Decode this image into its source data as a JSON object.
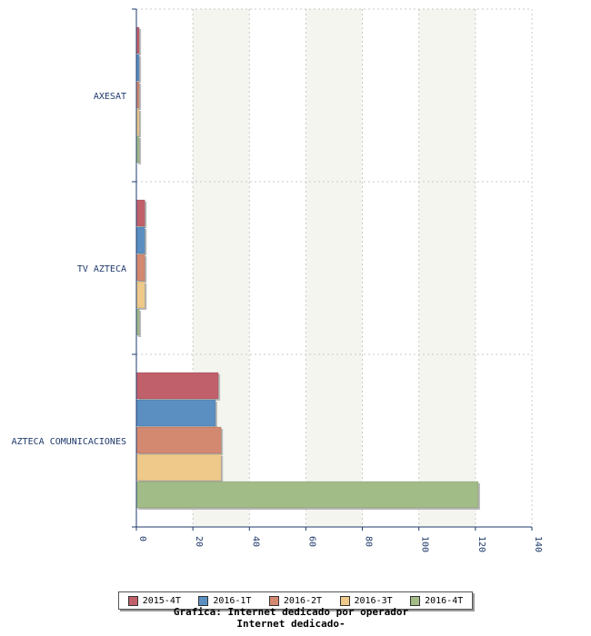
{
  "chart_data": {
    "type": "bar",
    "orientation": "horizontal",
    "categories": [
      "AXESAT",
      "TV AZTECA",
      "AZTECA COMUNICACIONES"
    ],
    "series": [
      {
        "name": "2015-4T",
        "color": "#c0606b",
        "values": [
          1,
          3,
          29
        ]
      },
      {
        "name": "2016-1T",
        "color": "#5b8fc2",
        "values": [
          1,
          3,
          28
        ]
      },
      {
        "name": "2016-2T",
        "color": "#d38870",
        "values": [
          1,
          3,
          30
        ]
      },
      {
        "name": "2016-3T",
        "color": "#eec98a",
        "values": [
          1,
          3,
          30
        ]
      },
      {
        "name": "2016-4T",
        "color": "#a2bc88",
        "values": [
          1,
          1,
          121
        ]
      }
    ],
    "xlim": [
      0,
      140
    ],
    "xticks": [
      0,
      20,
      40,
      60,
      80,
      100,
      120,
      140
    ],
    "grid": true,
    "legend_position": "bottom"
  },
  "footer": {
    "line1": "Grafica: Internet dedicado por operador",
    "line2": "Internet dedicado-"
  }
}
